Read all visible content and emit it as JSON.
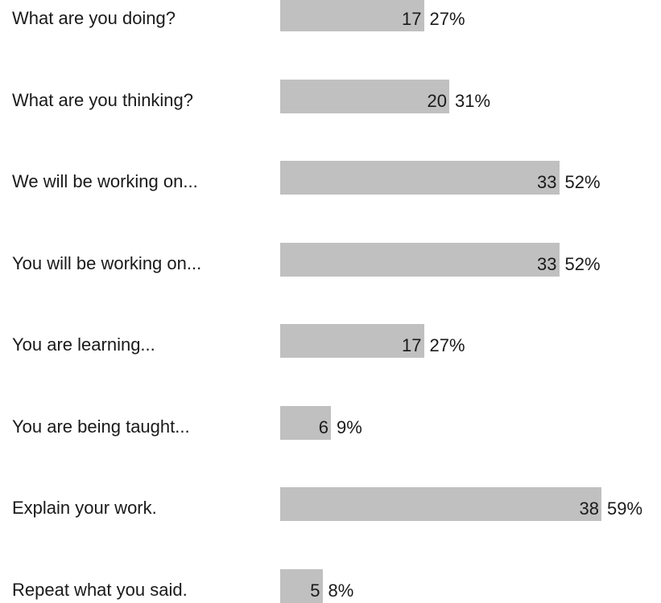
{
  "chart_data": {
    "type": "bar",
    "orientation": "horizontal",
    "categories": [
      "What are you doing?",
      "What are you thinking?",
      "We will be working on...",
      "You will be working on...",
      "You are learning...",
      "You are being taught...",
      "Explain your work.",
      "Repeat what you said."
    ],
    "series": [
      {
        "values": [
          17,
          20,
          33,
          33,
          17,
          6,
          38,
          5
        ]
      }
    ],
    "percent_labels": [
      "27%",
      "31%",
      "52%",
      "52%",
      "27%",
      "9%",
      "59%",
      "8%"
    ],
    "bar_color": "#c0c0c0",
    "grid": false,
    "legend": "none"
  }
}
